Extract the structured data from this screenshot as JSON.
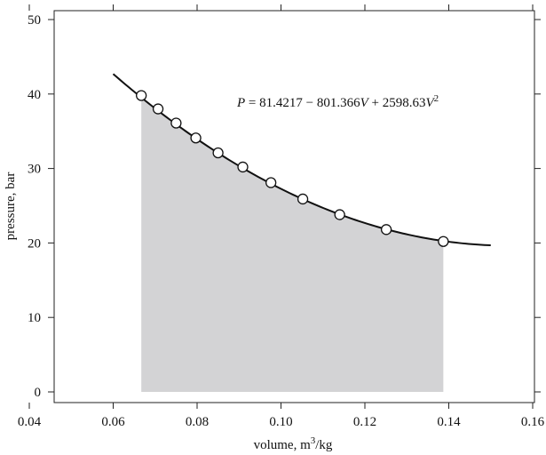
{
  "chart_data": {
    "type": "scatter",
    "xlabel": {
      "text": "volume, m",
      "sup": "3",
      "suffix": "/kg"
    },
    "ylabel": "pressure, bar",
    "xlim": [
      0.04,
      0.16
    ],
    "ylim": [
      0,
      50
    ],
    "xticks": [
      0.04,
      0.06,
      0.08,
      0.1,
      0.12,
      0.14,
      0.16
    ],
    "xtick_labels": [
      "0.04",
      "0.06",
      "0.08",
      "0.10",
      "0.12",
      "0.14",
      "0.16"
    ],
    "yticks": [
      0,
      10,
      20,
      30,
      40,
      50
    ],
    "ytick_labels": [
      "0",
      "10",
      "20",
      "30",
      "40",
      "50"
    ],
    "grid": false,
    "fit": {
      "coefficients": [
        81.4217,
        -801.366,
        2598.63
      ],
      "x_range": [
        0.06,
        0.15
      ],
      "equation": {
        "p": "P",
        "rhs_prefix": " = 81.4217 − 801.366",
        "v1": "V",
        "rhs_mid": " + 2598.63",
        "v2": "V",
        "exp": "2"
      }
    },
    "shaded_area": {
      "x_from": 0.0667,
      "x_to": 0.1387,
      "y_base": 0,
      "color": "#d3d3d5"
    },
    "points": [
      {
        "x": 0.0667,
        "y": 39.8
      },
      {
        "x": 0.0707,
        "y": 38.0
      },
      {
        "x": 0.075,
        "y": 36.1
      },
      {
        "x": 0.0797,
        "y": 34.1
      },
      {
        "x": 0.085,
        "y": 32.1
      },
      {
        "x": 0.0909,
        "y": 30.2
      },
      {
        "x": 0.0976,
        "y": 28.1
      },
      {
        "x": 0.1052,
        "y": 25.9
      },
      {
        "x": 0.114,
        "y": 23.8
      },
      {
        "x": 0.1251,
        "y": 21.8
      },
      {
        "x": 0.1387,
        "y": 20.2
      }
    ],
    "colors": {
      "curve": "#111111",
      "marker_fill": "#ffffff",
      "marker_stroke": "#111111",
      "frame": "#222222"
    }
  }
}
